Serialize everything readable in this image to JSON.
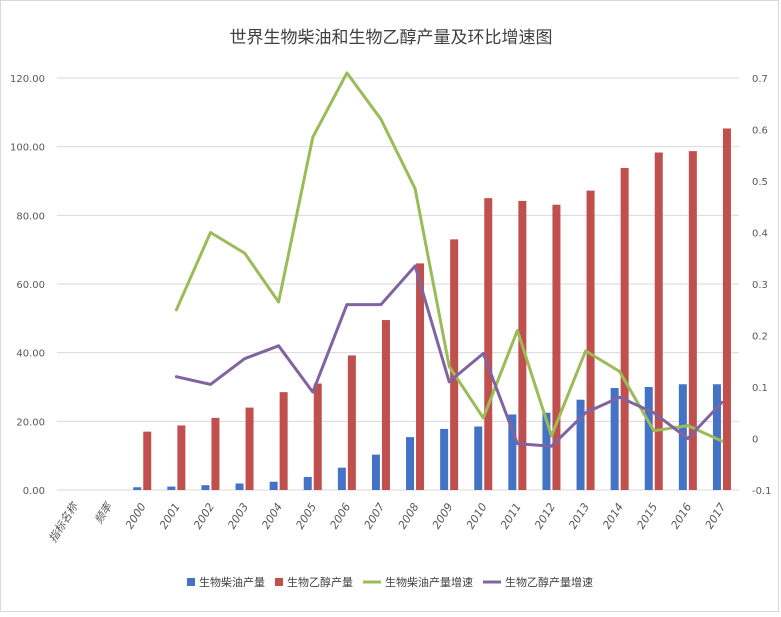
{
  "chart_data": {
    "type": "bar",
    "title": "世界生物柴油和生物乙醇产量及环比增速图",
    "categories": [
      "指标名称",
      "频率",
      "2000",
      "2001",
      "2002",
      "2003",
      "2004",
      "2005",
      "2006",
      "2007",
      "2008",
      "2009",
      "2010",
      "2011",
      "2012",
      "2013",
      "2014",
      "2015",
      "2016",
      "2017"
    ],
    "y_left": {
      "min": 0,
      "max": 120,
      "ticks": [
        "0.00",
        "20.00",
        "40.00",
        "60.00",
        "80.00",
        "100.00",
        "120.00"
      ]
    },
    "y_right": {
      "min": -0.1,
      "max": 0.7,
      "ticks": [
        "-0.1",
        "0",
        "0.1",
        "0.2",
        "0.3",
        "0.4",
        "0.5",
        "0.6",
        "0.7"
      ]
    },
    "grid": true,
    "legend_position": "bottom",
    "series": [
      {
        "name": "生物柴油产量",
        "kind": "bar",
        "axis": "left",
        "color": "#4472c4",
        "values": [
          null,
          null,
          0.8,
          1.0,
          1.4,
          1.9,
          2.4,
          3.8,
          6.5,
          10.3,
          15.4,
          17.8,
          18.5,
          22.0,
          22.5,
          26.3,
          29.7,
          30.0,
          30.8,
          30.8
        ]
      },
      {
        "name": "生物乙醇产量",
        "kind": "bar",
        "axis": "left",
        "color": "#c0504d",
        "values": [
          null,
          null,
          17.0,
          18.8,
          21.0,
          24.0,
          28.5,
          31.0,
          39.2,
          49.5,
          66.0,
          73.0,
          85.0,
          84.2,
          83.1,
          87.2,
          93.8,
          98.3,
          98.7,
          105.3
        ]
      },
      {
        "name": "生物柴油产量增速",
        "kind": "line",
        "axis": "right",
        "color": "#9bbb59",
        "values": [
          null,
          null,
          null,
          0.25,
          0.4,
          0.36,
          0.265,
          0.585,
          0.71,
          0.62,
          0.485,
          0.14,
          0.04,
          0.21,
          0.005,
          0.17,
          0.13,
          0.015,
          0.025,
          -0.005
        ]
      },
      {
        "name": "生物乙醇产量增速",
        "kind": "line",
        "axis": "right",
        "color": "#8064a2",
        "values": [
          null,
          null,
          null,
          0.12,
          0.105,
          0.155,
          0.18,
          0.09,
          0.26,
          0.26,
          0.335,
          0.11,
          0.165,
          -0.01,
          -0.015,
          0.05,
          0.08,
          0.05,
          0.0,
          0.07
        ]
      }
    ]
  }
}
